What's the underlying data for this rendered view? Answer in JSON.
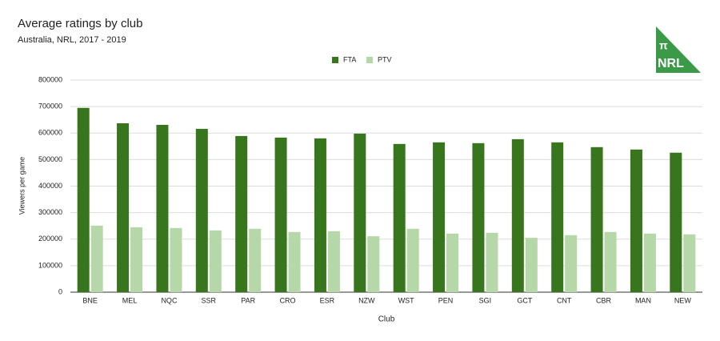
{
  "chart_data": {
    "type": "bar",
    "title": "Average ratings by club",
    "subtitle": "Australia, NRL, 2017 - 2019",
    "x_label": "Club",
    "y_label": "Viewers per game",
    "categories": [
      "BNE",
      "MEL",
      "NQC",
      "SSR",
      "PAR",
      "CRO",
      "ESR",
      "NZW",
      "WST",
      "PEN",
      "SGI",
      "GCT",
      "CNT",
      "CBR",
      "MAN",
      "NEW"
    ],
    "series": [
      {
        "name": "FTA",
        "color": "#38761d",
        "values": [
          695000,
          637000,
          631000,
          616000,
          589000,
          583000,
          580000,
          598000,
          559000,
          565000,
          562000,
          577000,
          565000,
          547000,
          538000,
          526000
        ]
      },
      {
        "name": "PTV",
        "color": "#b6d7a8",
        "values": [
          251000,
          245000,
          242000,
          233000,
          239000,
          227000,
          230000,
          211000,
          239000,
          221000,
          224000,
          205000,
          215000,
          227000,
          221000,
          218000
        ]
      }
    ],
    "ylim": [
      0,
      800000
    ],
    "yticks": [
      0,
      100000,
      200000,
      300000,
      400000,
      500000,
      600000,
      700000,
      800000
    ],
    "grid": true,
    "legend": "top"
  },
  "logo": {
    "symbol": "π",
    "text": "NRL"
  }
}
